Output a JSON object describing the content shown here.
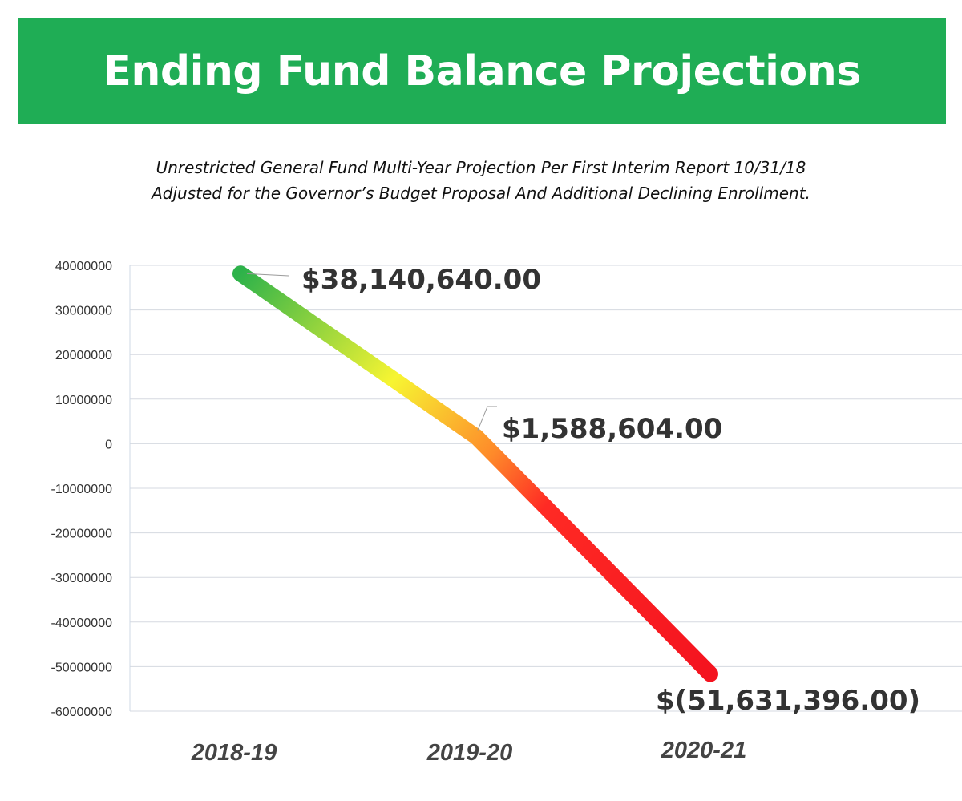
{
  "title": "Ending Fund Balance Projections",
  "subtitle": [
    "Unrestricted General Fund Multi-Year Projection Per First Interim Report 10/31/18",
    "Adjusted for the Governor’s Budget Proposal And Additional Declining Enrollment."
  ],
  "colors": {
    "banner": "#1fad55",
    "gradient": [
      "#2db24a",
      "#f7f532",
      "#fe8a2a",
      "#ff2a24",
      "#f4131f"
    ],
    "negative_label": "#ee1111",
    "label": "#333333",
    "gridline": "#d5d9e0"
  },
  "chart_data": {
    "type": "line",
    "categories": [
      "2018-19",
      "2019-20",
      "2020-21"
    ],
    "series": [
      {
        "values": [
          38140640,
          1588604,
          -51631396
        ]
      }
    ],
    "data_labels": [
      "$38,140,640.00",
      "$1,588,604.00",
      "$(51,631,396.00)"
    ],
    "yticks": [
      "40000000",
      "30000000",
      "20000000",
      "10000000",
      "0",
      "-10000000",
      "-20000000",
      "-30000000",
      "-40000000",
      "-50000000",
      "-60000000"
    ],
    "ylim": [
      -60000000,
      40000000
    ],
    "grid": true,
    "legend": "none"
  }
}
